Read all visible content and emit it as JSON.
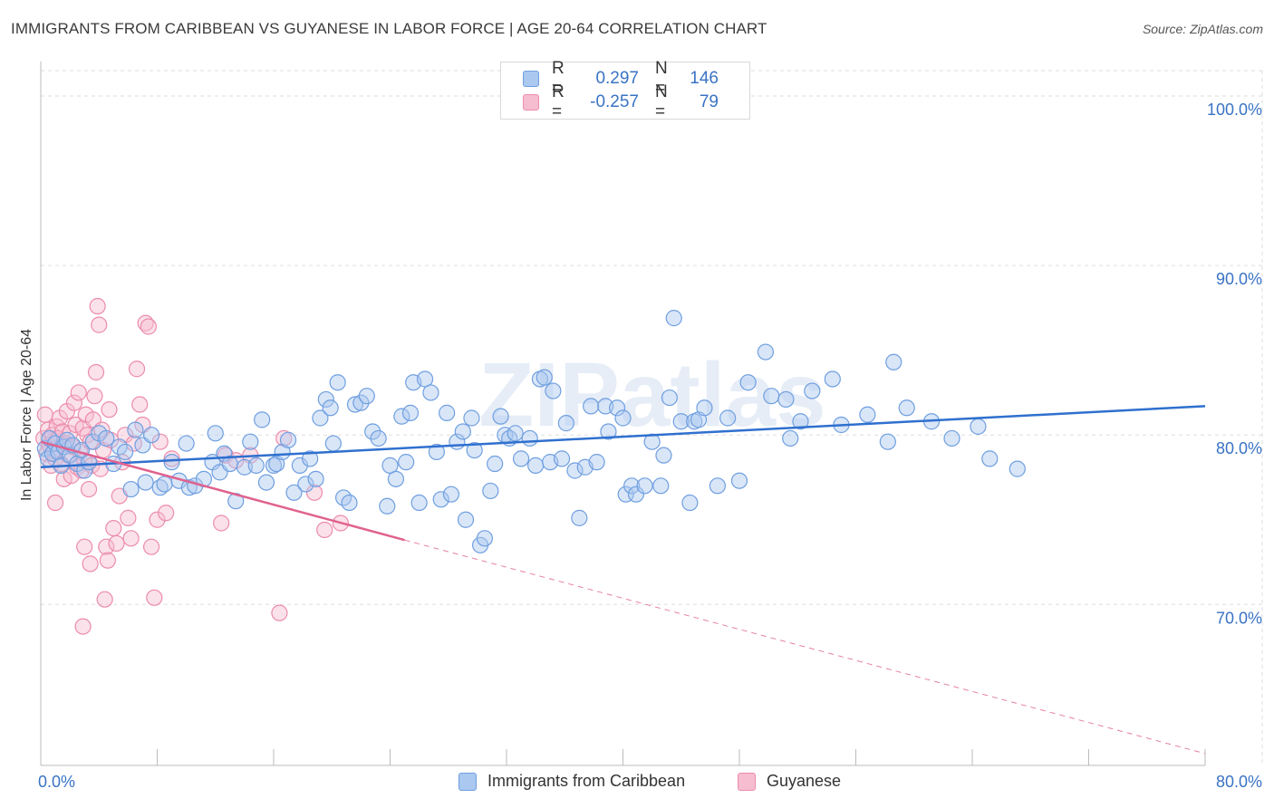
{
  "title": "IMMIGRANTS FROM CARIBBEAN VS GUYANESE IN LABOR FORCE | AGE 20-64 CORRELATION CHART",
  "source": "Source: ZipAtlas.com",
  "watermark": "ZIPatlas",
  "colors": {
    "blue_fill": "#aac8f0",
    "blue_stroke": "#6f9fe0",
    "blue_line": "#2f70cf",
    "pink_fill": "#f6bdd0",
    "pink_stroke": "#ec8cab",
    "pink_line": "#e0628f",
    "axis_text": "#3a73c4",
    "grid": "#dddddd"
  },
  "legend": {
    "rows": [
      {
        "r_label": "R =",
        "r_value": "0.297",
        "n_label": "N =",
        "n_value": "146"
      },
      {
        "r_label": "R =",
        "r_value": "-0.257",
        "n_label": "N =",
        "n_value": "79"
      }
    ],
    "series": [
      "Immigrants from Caribbean",
      "Guyanese"
    ]
  },
  "chart_data": {
    "type": "scatter",
    "title": "IMMIGRANTS FROM CARIBBEAN VS GUYANESE IN LABOR FORCE | AGE 20-64 CORRELATION CHART",
    "xlabel": "",
    "ylabel": "In Labor Force | Age 20-64",
    "xlim": [
      0,
      80
    ],
    "ylim": [
      60.5,
      101.5
    ],
    "x_tick_labels": [
      "0.0%",
      "80.0%"
    ],
    "y_ticks": [
      70,
      80,
      90,
      100
    ],
    "y_tick_labels": [
      "70.0%",
      "80.0%",
      "90.0%",
      "100.0%"
    ],
    "grid": true,
    "legend_position": "top-center",
    "series": [
      {
        "name": "Immigrants from Caribbean",
        "r": 0.297,
        "n": 146,
        "trend": {
          "x0": 0,
          "y0": 78.1,
          "x1": 80,
          "y1": 81.7
        },
        "points": [
          [
            0.3,
            79.2
          ],
          [
            0.5,
            78.6
          ],
          [
            0.6,
            79.8
          ],
          [
            0.8,
            78.9
          ],
          [
            1.0,
            79.5
          ],
          [
            1.2,
            79.0
          ],
          [
            1.4,
            78.2
          ],
          [
            1.6,
            79.3
          ],
          [
            1.8,
            79.7
          ],
          [
            2.0,
            78.8
          ],
          [
            2.2,
            79.4
          ],
          [
            2.5,
            78.3
          ],
          [
            2.8,
            79.1
          ],
          [
            3.0,
            77.9
          ],
          [
            3.3,
            78.4
          ],
          [
            3.6,
            79.6
          ],
          [
            4.0,
            80.1
          ],
          [
            4.5,
            79.8
          ],
          [
            5.0,
            78.3
          ],
          [
            5.4,
            79.3
          ],
          [
            5.8,
            79.0
          ],
          [
            6.2,
            76.8
          ],
          [
            6.5,
            80.3
          ],
          [
            7.0,
            79.4
          ],
          [
            7.2,
            77.2
          ],
          [
            7.6,
            80.0
          ],
          [
            8.2,
            76.9
          ],
          [
            8.5,
            77.1
          ],
          [
            9.0,
            78.4
          ],
          [
            9.5,
            77.3
          ],
          [
            10.0,
            79.5
          ],
          [
            10.2,
            76.9
          ],
          [
            10.6,
            77.0
          ],
          [
            11.2,
            77.4
          ],
          [
            11.8,
            78.4
          ],
          [
            12.0,
            80.1
          ],
          [
            12.3,
            77.8
          ],
          [
            12.6,
            78.9
          ],
          [
            13.0,
            78.3
          ],
          [
            13.4,
            76.1
          ],
          [
            14.0,
            78.1
          ],
          [
            14.4,
            79.6
          ],
          [
            14.8,
            78.2
          ],
          [
            15.2,
            80.9
          ],
          [
            15.5,
            77.2
          ],
          [
            16.0,
            78.2
          ],
          [
            16.2,
            78.3
          ],
          [
            16.6,
            79.0
          ],
          [
            17.0,
            79.7
          ],
          [
            17.4,
            76.6
          ],
          [
            17.8,
            78.2
          ],
          [
            18.2,
            77.1
          ],
          [
            18.5,
            78.6
          ],
          [
            18.9,
            77.4
          ],
          [
            19.2,
            81.0
          ],
          [
            19.6,
            82.1
          ],
          [
            19.9,
            81.6
          ],
          [
            20.1,
            79.5
          ],
          [
            20.4,
            83.1
          ],
          [
            20.8,
            76.3
          ],
          [
            21.2,
            76.0
          ],
          [
            21.6,
            81.8
          ],
          [
            22.0,
            81.9
          ],
          [
            22.4,
            82.3
          ],
          [
            22.8,
            80.2
          ],
          [
            23.2,
            79.8
          ],
          [
            23.8,
            75.8
          ],
          [
            24.0,
            78.2
          ],
          [
            24.4,
            77.4
          ],
          [
            24.8,
            81.1
          ],
          [
            25.1,
            78.4
          ],
          [
            25.4,
            81.3
          ],
          [
            25.6,
            83.1
          ],
          [
            26.0,
            76.0
          ],
          [
            26.4,
            83.3
          ],
          [
            26.8,
            82.5
          ],
          [
            27.2,
            79.0
          ],
          [
            27.5,
            76.2
          ],
          [
            27.9,
            81.3
          ],
          [
            28.2,
            76.5
          ],
          [
            28.6,
            79.6
          ],
          [
            29.0,
            80.2
          ],
          [
            29.2,
            75.0
          ],
          [
            29.6,
            81.0
          ],
          [
            29.8,
            79.1
          ],
          [
            30.2,
            73.5
          ],
          [
            30.5,
            73.9
          ],
          [
            30.9,
            76.7
          ],
          [
            31.2,
            78.3
          ],
          [
            31.6,
            81.1
          ],
          [
            31.9,
            80.0
          ],
          [
            32.2,
            79.8
          ],
          [
            32.6,
            80.1
          ],
          [
            33.0,
            78.6
          ],
          [
            33.6,
            79.8
          ],
          [
            34.0,
            78.2
          ],
          [
            34.3,
            83.3
          ],
          [
            34.6,
            83.4
          ],
          [
            35.0,
            78.4
          ],
          [
            35.2,
            82.6
          ],
          [
            35.8,
            78.6
          ],
          [
            36.1,
            80.7
          ],
          [
            36.7,
            77.9
          ],
          [
            37.0,
            75.1
          ],
          [
            37.4,
            78.1
          ],
          [
            37.8,
            81.7
          ],
          [
            38.2,
            78.4
          ],
          [
            38.8,
            81.7
          ],
          [
            39.0,
            80.2
          ],
          [
            39.6,
            81.6
          ],
          [
            40.0,
            81.0
          ],
          [
            40.2,
            76.5
          ],
          [
            40.6,
            77.0
          ],
          [
            40.9,
            76.5
          ],
          [
            41.5,
            77.0
          ],
          [
            42.0,
            79.6
          ],
          [
            42.6,
            77.0
          ],
          [
            42.8,
            78.8
          ],
          [
            43.2,
            82.2
          ],
          [
            43.5,
            86.9
          ],
          [
            44.0,
            80.8
          ],
          [
            44.6,
            76.0
          ],
          [
            44.9,
            80.8
          ],
          [
            45.2,
            80.9
          ],
          [
            45.6,
            81.6
          ],
          [
            46.5,
            77.0
          ],
          [
            47.2,
            81.0
          ],
          [
            48.0,
            77.3
          ],
          [
            48.6,
            83.1
          ],
          [
            49.8,
            84.9
          ],
          [
            50.2,
            82.3
          ],
          [
            51.2,
            82.1
          ],
          [
            51.5,
            79.8
          ],
          [
            52.2,
            80.8
          ],
          [
            53.0,
            82.6
          ],
          [
            54.4,
            83.3
          ],
          [
            55.0,
            80.6
          ],
          [
            56.8,
            81.2
          ],
          [
            58.2,
            79.6
          ],
          [
            58.6,
            84.3
          ],
          [
            59.5,
            81.6
          ],
          [
            61.2,
            80.8
          ],
          [
            62.6,
            79.8
          ],
          [
            64.4,
            80.5
          ],
          [
            65.2,
            78.6
          ],
          [
            67.1,
            78.0
          ]
        ]
      },
      {
        "name": "Guyanese",
        "r": -0.257,
        "n": 79,
        "trend": {
          "x0": 0,
          "y0": 79.6,
          "x1": 25,
          "y1": 73.8,
          "dash_x1": 80,
          "dash_y1": 61.2
        },
        "points": [
          [
            0.2,
            79.8
          ],
          [
            0.3,
            81.2
          ],
          [
            0.4,
            78.9
          ],
          [
            0.5,
            80.3
          ],
          [
            0.6,
            79.4
          ],
          [
            0.7,
            78.2
          ],
          [
            0.8,
            80.0
          ],
          [
            0.9,
            79.1
          ],
          [
            1.0,
            78.6
          ],
          [
            1.0,
            76.0
          ],
          [
            1.1,
            80.5
          ],
          [
            1.2,
            79.8
          ],
          [
            1.3,
            81.0
          ],
          [
            1.4,
            78.3
          ],
          [
            1.5,
            80.2
          ],
          [
            1.6,
            77.4
          ],
          [
            1.7,
            79.5
          ],
          [
            1.8,
            81.4
          ],
          [
            1.9,
            78.8
          ],
          [
            2.0,
            80.1
          ],
          [
            2.1,
            77.6
          ],
          [
            2.2,
            79.3
          ],
          [
            2.3,
            81.9
          ],
          [
            2.4,
            80.6
          ],
          [
            2.5,
            78.1
          ],
          [
            2.6,
            82.5
          ],
          [
            2.7,
            79.0
          ],
          [
            2.8,
            77.9
          ],
          [
            2.9,
            80.4
          ],
          [
            3.0,
            78.5
          ],
          [
            3.1,
            81.2
          ],
          [
            3.2,
            80.0
          ],
          [
            3.3,
            76.8
          ],
          [
            3.4,
            79.6
          ],
          [
            3.5,
            78.2
          ],
          [
            3.6,
            80.9
          ],
          [
            3.7,
            82.3
          ],
          [
            3.8,
            83.7
          ],
          [
            3.9,
            87.6
          ],
          [
            4.0,
            86.5
          ],
          [
            4.1,
            78.0
          ],
          [
            4.2,
            80.3
          ],
          [
            4.3,
            79.1
          ],
          [
            4.4,
            70.3
          ],
          [
            4.5,
            73.4
          ],
          [
            4.6,
            72.6
          ],
          [
            4.7,
            81.5
          ],
          [
            4.8,
            79.7
          ],
          [
            5.0,
            74.5
          ],
          [
            5.2,
            73.6
          ],
          [
            5.4,
            76.4
          ],
          [
            5.6,
            78.4
          ],
          [
            5.8,
            80.0
          ],
          [
            6.0,
            75.1
          ],
          [
            6.2,
            73.9
          ],
          [
            6.4,
            79.5
          ],
          [
            6.6,
            83.9
          ],
          [
            6.8,
            81.8
          ],
          [
            7.0,
            80.6
          ],
          [
            7.2,
            86.6
          ],
          [
            7.4,
            86.4
          ],
          [
            7.6,
            73.4
          ],
          [
            7.8,
            70.4
          ],
          [
            8.0,
            75.0
          ],
          [
            8.2,
            79.6
          ],
          [
            8.6,
            75.4
          ],
          [
            9.0,
            78.6
          ],
          [
            2.9,
            68.7
          ],
          [
            3.0,
            73.4
          ],
          [
            3.4,
            72.4
          ],
          [
            12.4,
            74.8
          ],
          [
            12.7,
            78.8
          ],
          [
            13.4,
            78.5
          ],
          [
            14.4,
            78.8
          ],
          [
            16.4,
            69.5
          ],
          [
            16.7,
            79.8
          ],
          [
            18.8,
            76.6
          ],
          [
            19.5,
            74.4
          ],
          [
            20.6,
            74.8
          ]
        ]
      }
    ]
  }
}
